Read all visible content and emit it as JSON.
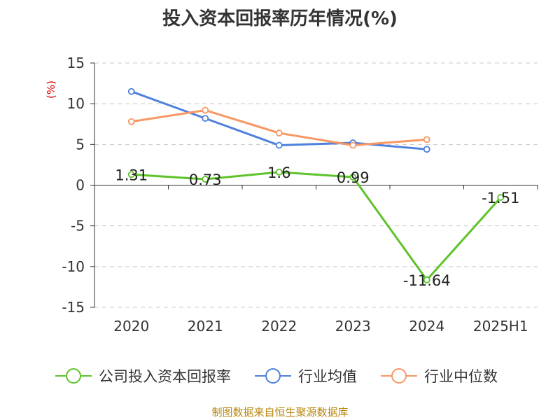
{
  "colors": {
    "company": "#5ec32a",
    "industry_avg": "#4f80dc",
    "industry_median": "#f79764",
    "unit": "#e00000",
    "footer": "#b8860b"
  },
  "footer": {
    "source": "制图数据来自恒生聚源数据库"
  },
  "chart_data": {
    "type": "line",
    "title": "投入资本回报率历年情况(%)",
    "ylabel": "(%)",
    "xlabel": "",
    "categories": [
      "2020",
      "2021",
      "2022",
      "2023",
      "2024",
      "2025H1"
    ],
    "ylim": [
      -15,
      15
    ],
    "yticks": [
      15,
      10,
      5,
      0,
      -5,
      -10,
      -15
    ],
    "grid": true,
    "legend_position": "bottom",
    "series": [
      {
        "name": "公司投入资本回报率",
        "values": [
          1.31,
          0.73,
          1.6,
          0.99,
          -11.64,
          -1.51
        ],
        "labels": [
          "1.31",
          "0.73",
          "1.6",
          "0.99",
          "-11.64",
          "-1.51"
        ]
      },
      {
        "name": "行业均值",
        "values": [
          11.5,
          8.2,
          4.9,
          5.2,
          4.4,
          null
        ]
      },
      {
        "name": "行业中位数",
        "values": [
          7.8,
          9.2,
          6.4,
          4.9,
          5.6,
          null
        ]
      }
    ]
  }
}
